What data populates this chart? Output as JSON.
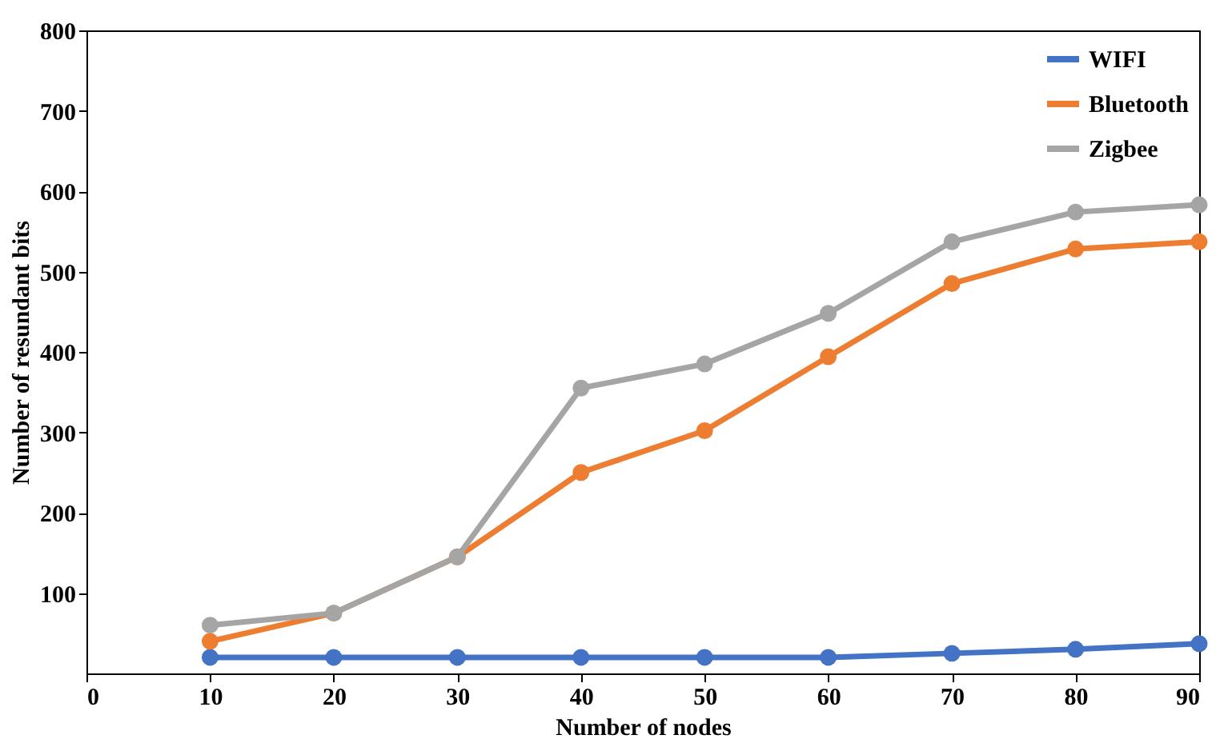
{
  "chart_data": {
    "type": "line",
    "xlabel": "Number of nodes",
    "ylabel": "Number of resundant bits",
    "x": [
      10,
      20,
      30,
      40,
      50,
      60,
      70,
      80,
      90
    ],
    "series": [
      {
        "name": "WIFI",
        "color": "#4472c4",
        "values": [
          20,
          20,
          20,
          20,
          20,
          20,
          25,
          30,
          37
        ]
      },
      {
        "name": "Bluetooth",
        "color": "#ed7d31",
        "values": [
          40,
          75,
          145,
          250,
          302,
          394,
          485,
          528,
          537
        ]
      },
      {
        "name": "Zigbee",
        "color": "#a5a5a5",
        "values": [
          60,
          75,
          145,
          355,
          385,
          448,
          537,
          574,
          583
        ]
      }
    ],
    "xlim": [
      0,
      90
    ],
    "xticks": [
      0,
      10,
      20,
      30,
      40,
      50,
      60,
      70,
      80,
      90
    ],
    "ylim": [
      0,
      800
    ],
    "yticks": [
      100,
      200,
      300,
      400,
      500,
      600,
      700,
      800
    ],
    "grid": false,
    "legend": "top right",
    "marker": "circle",
    "line_style": "solid"
  }
}
